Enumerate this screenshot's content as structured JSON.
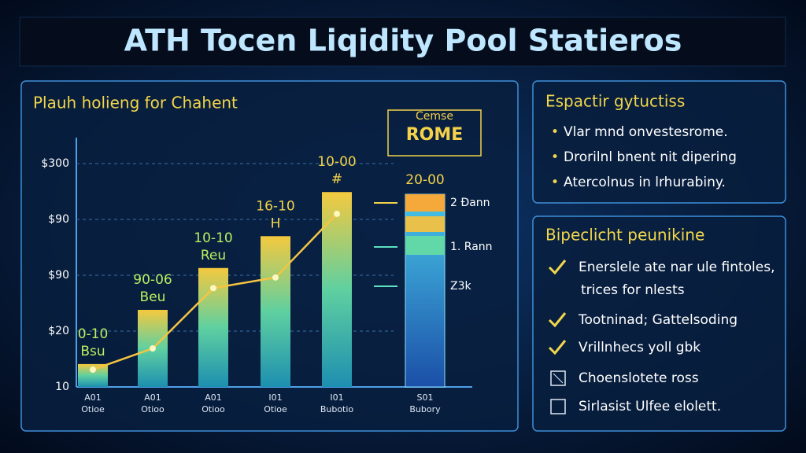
{
  "title": "ATH Tocen Liqidity Pool Statieros",
  "chart_data": {
    "type": "bar",
    "title": "Plauh holieng for Chahent",
    "categories": [
      [
        "A01",
        "Otioe"
      ],
      [
        "A01",
        "Otioo"
      ],
      [
        "A01",
        "Otioo"
      ],
      [
        "I01",
        "Otioe"
      ],
      [
        "I01",
        "Bubotio"
      ]
    ],
    "values": [
      0.41,
      1.38,
      2.13,
      2.7,
      3.49
    ],
    "bar_labels": [
      [
        "0-10",
        "Bsu"
      ],
      [
        "90-06",
        "Beu"
      ],
      [
        "10-10",
        "Reu"
      ],
      [
        "16-10",
        "H"
      ],
      [
        "10-00",
        "#"
      ]
    ],
    "line": {
      "values": [
        0.31,
        0.69,
        1.77,
        1.96,
        3.1
      ],
      "color": "#f5c542"
    },
    "ylim": [
      0,
      4.5
    ],
    "yticks": [
      {
        "value": 0,
        "label": "10"
      },
      {
        "value": 1,
        "label": "$20"
      },
      {
        "value": 2,
        "label": "$90"
      },
      {
        "value": 3,
        "label": "$90"
      },
      {
        "value": 4,
        "label": "$300"
      }
    ],
    "grid": true,
    "callout": [
      "Cemse",
      "ROME"
    ],
    "stack": {
      "title": "20-00",
      "labels": [
        "2 Ðann",
        "1. Rann",
        "Z3k"
      ],
      "category": [
        "S01",
        "Bubory"
      ]
    }
  },
  "panels": [
    {
      "title": "Espactir gytuctiss",
      "items": [
        "Vlar mnd onvestesrome.",
        "Drorilnl bnent nit dipering",
        "Atercolnus in lrhurabiny."
      ]
    },
    {
      "title": "Bipeclicht peunikine",
      "items": [
        [
          "Enerslele ate nar ule fintoles,",
          "trices for nlests"
        ],
        [
          "Tootninad; Gattelsoding"
        ],
        [
          "Vrillnhecs yoll gbk"
        ],
        [
          "Choenslotete ross"
        ],
        [
          "Sirlasist Ulfee elolett."
        ]
      ]
    }
  ]
}
